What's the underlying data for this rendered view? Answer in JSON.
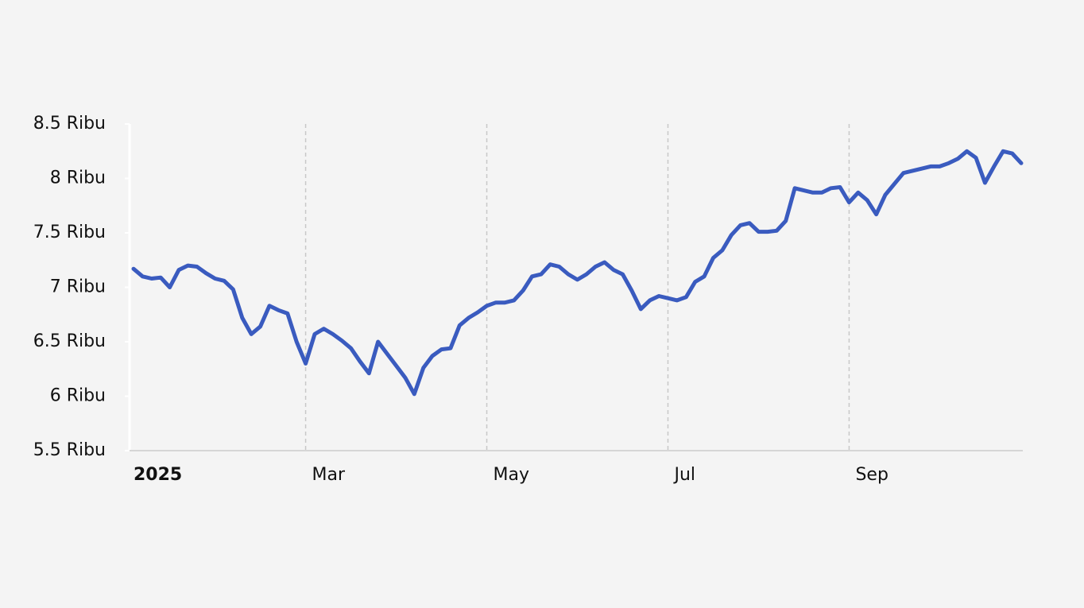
{
  "chart_data": {
    "type": "line",
    "categories": [
      "2025",
      null,
      null,
      null,
      null,
      null,
      null,
      null,
      null,
      null,
      null,
      null,
      null,
      null,
      null,
      null,
      null,
      null,
      null,
      "Mar",
      null,
      null,
      null,
      null,
      null,
      null,
      null,
      null,
      null,
      null,
      null,
      null,
      null,
      null,
      null,
      null,
      null,
      null,
      null,
      "May",
      null,
      null,
      null,
      null,
      null,
      null,
      null,
      null,
      null,
      null,
      null,
      null,
      null,
      null,
      null,
      null,
      null,
      null,
      null,
      "Jul",
      null,
      null,
      null,
      null,
      null,
      null,
      null,
      null,
      null,
      null,
      null,
      null,
      null,
      null,
      null,
      null,
      null,
      null,
      null,
      "Sep",
      null,
      null,
      null,
      null,
      null,
      null,
      null,
      null,
      null,
      null,
      null,
      null,
      null,
      null,
      null,
      null,
      null,
      null,
      null
    ],
    "values": [
      7170,
      7100,
      7080,
      7090,
      7000,
      7160,
      7200,
      7190,
      7130,
      7080,
      7060,
      6980,
      6720,
      6570,
      6640,
      6830,
      6790,
      6760,
      6500,
      6300,
      6570,
      6620,
      6570,
      6510,
      6440,
      6320,
      6210,
      6500,
      6390,
      6280,
      6170,
      6020,
      6260,
      6370,
      6430,
      6440,
      6650,
      6720,
      6770,
      6830,
      6860,
      6860,
      6880,
      6970,
      7100,
      7120,
      7210,
      7190,
      7120,
      7070,
      7120,
      7190,
      7230,
      7160,
      7120,
      6970,
      6800,
      6880,
      6920,
      6900,
      6880,
      6910,
      7050,
      7100,
      7270,
      7340,
      7480,
      7570,
      7590,
      7510,
      7510,
      7520,
      7610,
      7910,
      7890,
      7870,
      7870,
      7910,
      7920,
      7780,
      7870,
      7800,
      7670,
      7850,
      7950,
      8050,
      8070,
      8090,
      8110,
      8110,
      8140,
      8180,
      8250,
      8190,
      7960,
      8110,
      8250,
      8230,
      8140
    ],
    "color": "#3a5bbf",
    "ylim": [
      5500,
      8500
    ],
    "yticks": [
      {
        "value": 5500,
        "label": "5.5 Ribu"
      },
      {
        "value": 6000,
        "label": "6 Ribu"
      },
      {
        "value": 6500,
        "label": "6.5 Ribu"
      },
      {
        "value": 7000,
        "label": "7 Ribu"
      },
      {
        "value": 7500,
        "label": "7.5 Ribu"
      },
      {
        "value": 8000,
        "label": "8 Ribu"
      },
      {
        "value": 8500,
        "label": "8.5 Ribu"
      }
    ],
    "x_grid": true
  }
}
